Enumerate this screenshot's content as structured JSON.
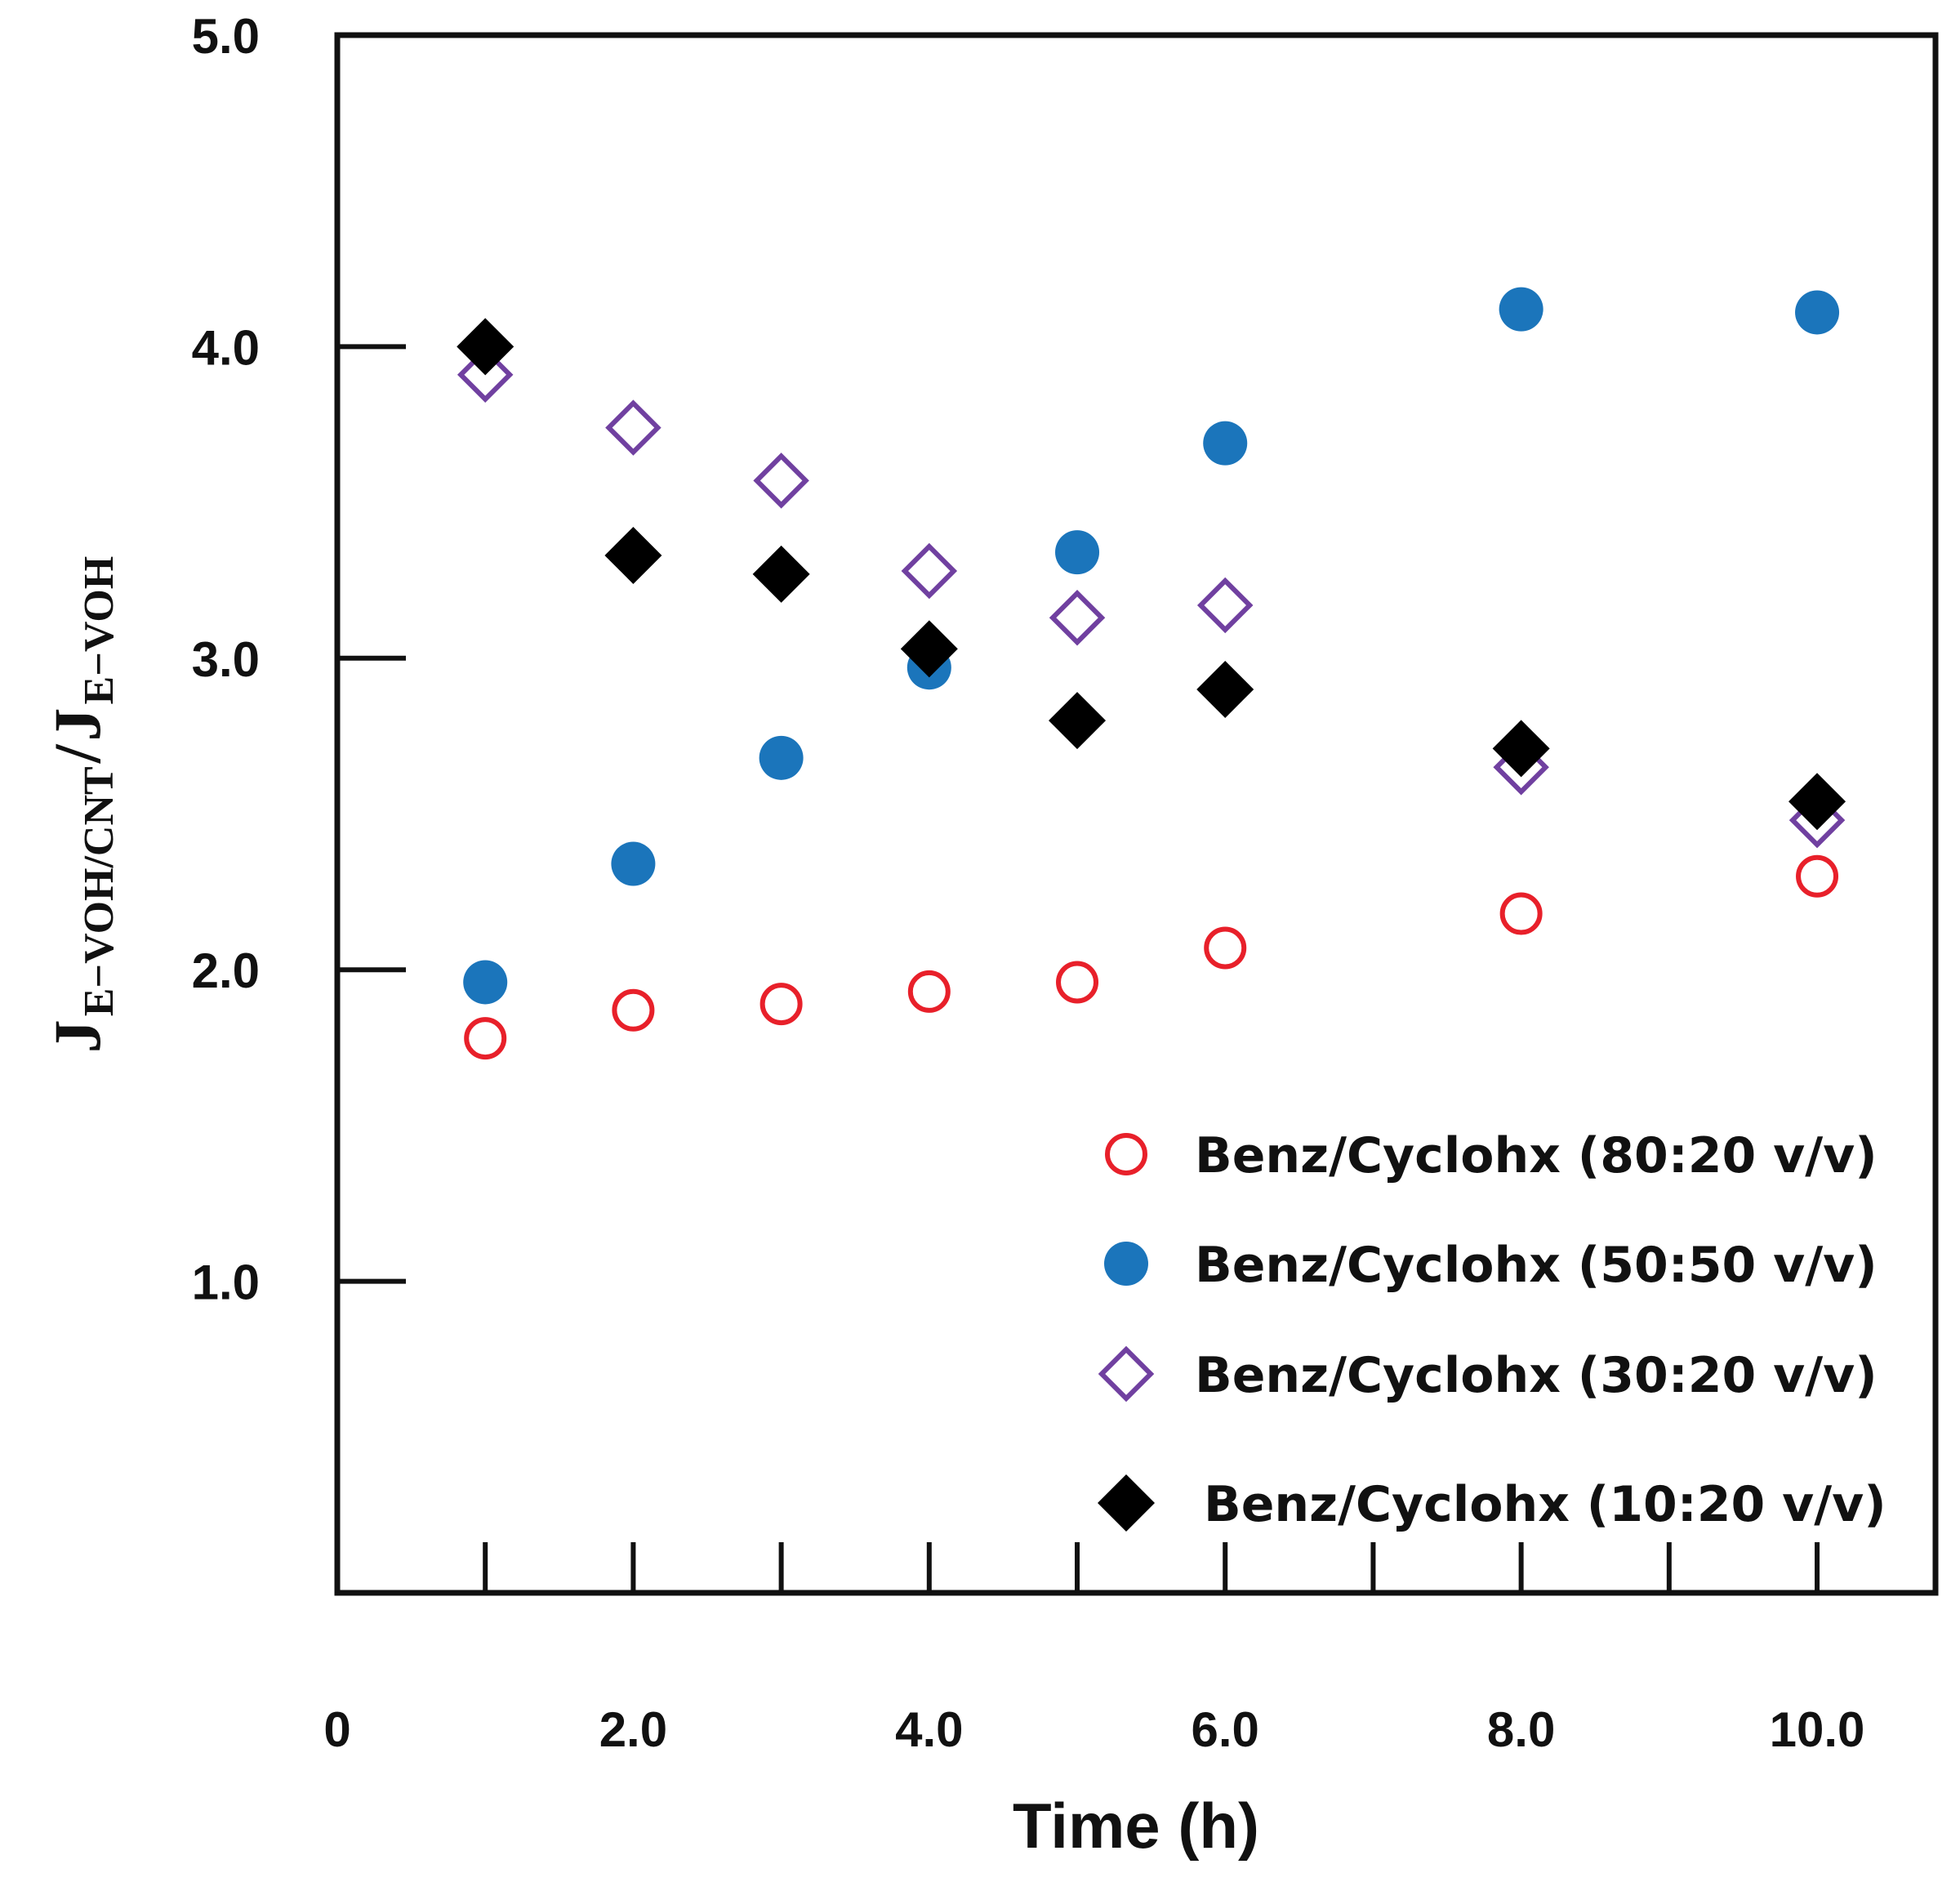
{
  "chart_data": {
    "type": "scatter",
    "xlabel": "Time (h)",
    "ylabel": {
      "numerator_main": "J",
      "numerator_sub": "E−VOH/CNT",
      "separator": "/",
      "denominator_main": "J",
      "denominator_sub": "E−VOH"
    },
    "xlim": [
      0,
      10.8
    ],
    "ylim": [
      0,
      5.0
    ],
    "x_ticks": [
      1,
      2,
      3,
      4,
      5,
      6,
      7,
      8,
      9,
      10
    ],
    "x_tick_labels": [
      {
        "value": 0,
        "label": "0"
      },
      {
        "value": 2,
        "label": "2.0"
      },
      {
        "value": 4,
        "label": "4.0"
      },
      {
        "value": 6,
        "label": "6.0"
      },
      {
        "value": 8,
        "label": "8.0"
      },
      {
        "value": 10,
        "label": "10.0"
      }
    ],
    "y_ticks": [
      1.0,
      2.0,
      3.0,
      4.0
    ],
    "y_tick_labels": [
      {
        "value": 1.0,
        "label": "1.0"
      },
      {
        "value": 2.0,
        "label": "2.0"
      },
      {
        "value": 3.0,
        "label": "3.0"
      },
      {
        "value": 4.0,
        "label": "4.0"
      },
      {
        "value": 5.0,
        "label": "5.0"
      }
    ],
    "grid": false,
    "legend_position": "bottom-right",
    "series": [
      {
        "name": "Benz/Cyclohx (80:20 v/v)",
        "marker": "open-circle",
        "color": "#e8202a",
        "x": [
          1,
          2,
          3,
          4,
          5,
          6,
          8,
          10
        ],
        "y": [
          1.78,
          1.87,
          1.89,
          1.93,
          1.96,
          2.07,
          2.18,
          2.3
        ]
      },
      {
        "name": "Benz/Cyclohx (50:50 v/v)",
        "marker": "filled-circle",
        "color": "#1b75bb",
        "x": [
          1,
          2,
          3,
          4,
          5,
          6,
          8,
          10
        ],
        "y": [
          1.96,
          2.34,
          2.68,
          2.97,
          3.34,
          3.69,
          4.12,
          4.11
        ]
      },
      {
        "name": "Benz/Cyclohx (30:20 v/v)",
        "marker": "open-diamond",
        "color": "#7040a0",
        "x": [
          1,
          2,
          3,
          4,
          5,
          6,
          8,
          10
        ],
        "y": [
          3.91,
          3.74,
          3.57,
          3.28,
          3.13,
          3.17,
          2.65,
          2.48
        ]
      },
      {
        "name": "Benz/Cyclohx (10:20 v/v)",
        "marker": "filled-diamond",
        "color": "#000000",
        "x": [
          1,
          2,
          3,
          4,
          5,
          6,
          8,
          10
        ],
        "y": [
          4.0,
          3.33,
          3.27,
          3.03,
          2.8,
          2.9,
          2.71,
          2.54
        ]
      }
    ]
  }
}
